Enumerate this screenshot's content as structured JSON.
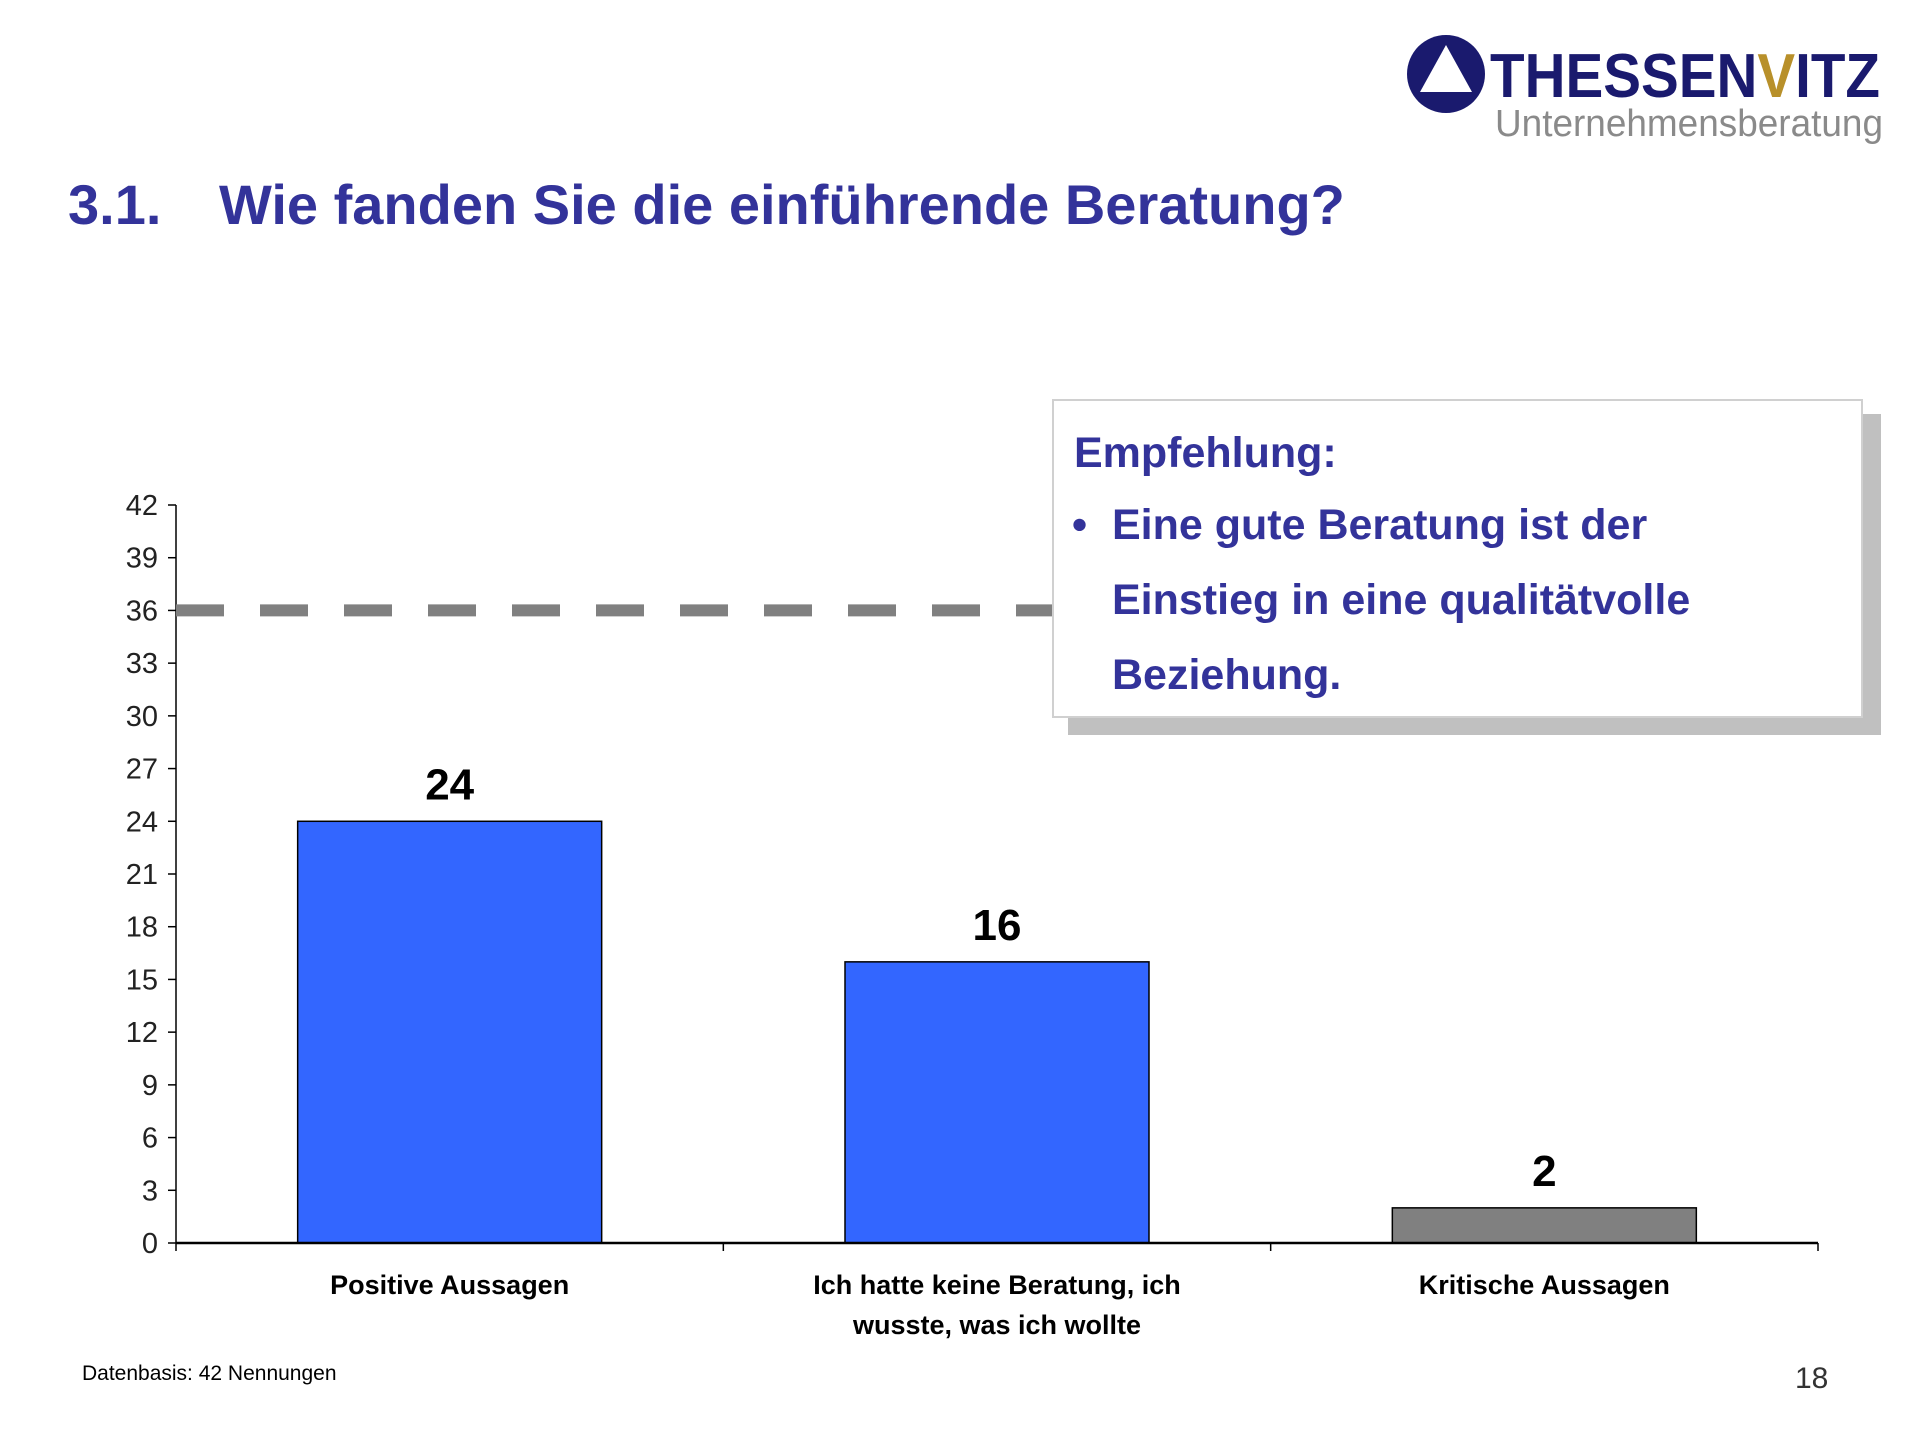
{
  "logo": {
    "name_part1": "THESSEN",
    "name_accent": "V",
    "name_part2": "ITZ",
    "subtitle": "Unternehmensberatung",
    "colors": {
      "navy": "#1a1a6e",
      "gold": "#b8902a",
      "gray": "#8a8a8a"
    }
  },
  "title": {
    "number": "3.1.",
    "text": "Wie fanden Sie die einführende Beratung?"
  },
  "callout": {
    "heading": "Empfehlung:",
    "bullet": "•",
    "lines": [
      "Eine gute Beratung ist der",
      "Einstieg in eine qualitätvolle",
      "Beziehung."
    ]
  },
  "chart_data": {
    "type": "bar",
    "title": "Wie fanden Sie die einführende Beratung?",
    "xlabel": "",
    "ylabel": "",
    "categories": [
      [
        "Positive Aussagen"
      ],
      [
        "Ich hatte keine Beratung, ich",
        "wusste, was ich wollte"
      ],
      [
        "Kritische Aussagen"
      ]
    ],
    "values": [
      24,
      16,
      2
    ],
    "bar_colors": [
      "#3366ff",
      "#3366ff",
      "#808080"
    ],
    "data_labels": [
      "24",
      "16",
      "2"
    ],
    "ylim": [
      0,
      42
    ],
    "yticks": [
      0,
      3,
      6,
      9,
      12,
      15,
      18,
      21,
      24,
      27,
      30,
      33,
      36,
      39,
      42
    ],
    "reference_line": {
      "value": 36,
      "style": "dashed",
      "color": "#808080"
    },
    "grid": false
  },
  "footer": {
    "source": "Datenbasis: 42 Nennungen",
    "page_number": "18"
  }
}
